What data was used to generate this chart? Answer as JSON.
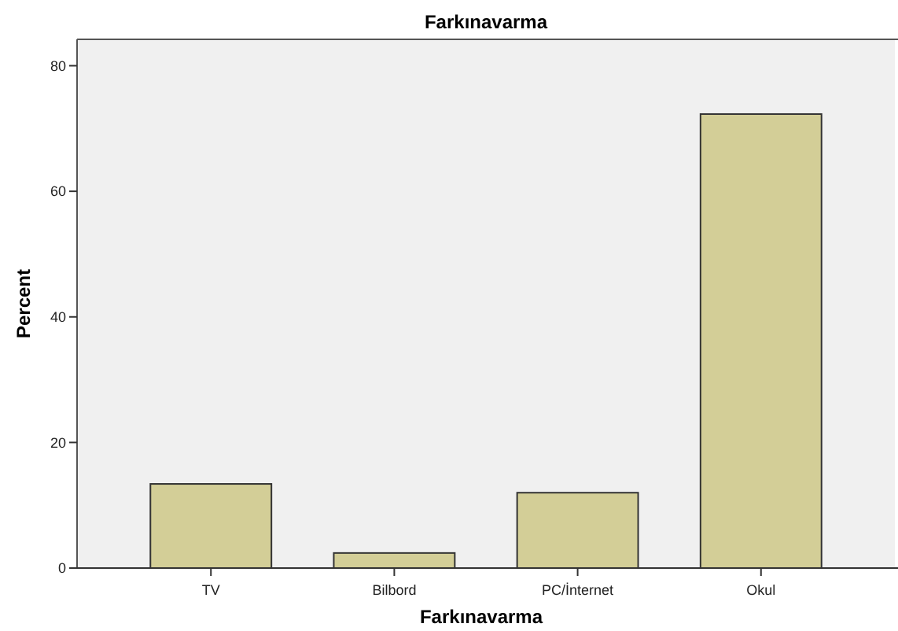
{
  "chart_data": {
    "type": "bar",
    "title": "Farkınavarma",
    "xlabel": "Farkınavarma",
    "ylabel": "Percent",
    "categories": [
      "TV",
      "Bilbord",
      "PC/İnternet",
      "Okul"
    ],
    "values": [
      13.4,
      2.4,
      12.0,
      72.3
    ],
    "color": "#d3ce97",
    "ylim": [
      0,
      84.2
    ],
    "yticks": [
      0,
      20,
      40,
      60,
      80
    ],
    "grid": false
  }
}
